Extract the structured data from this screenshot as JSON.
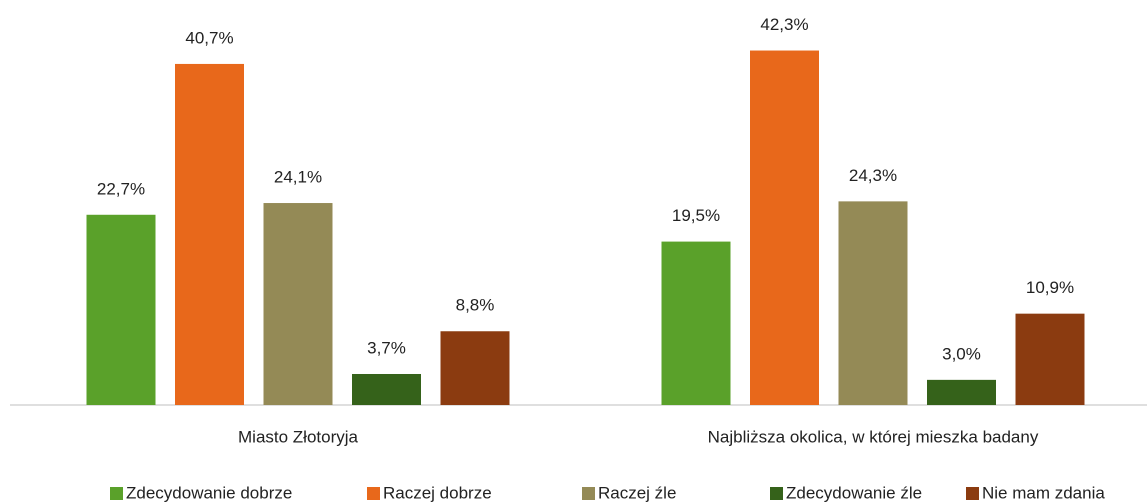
{
  "chart_data": {
    "type": "bar",
    "categories": [
      "Miasto Złotoryja",
      "Najbliższa okolica, w której mieszka badany"
    ],
    "series": [
      {
        "name": "Zdecydowanie dobrze",
        "color": "#5aa12a",
        "values": [
          22.7,
          19.5
        ],
        "value_labels": [
          "22,7%",
          "19,5%"
        ]
      },
      {
        "name": "Raczej dobrze",
        "color": "#e8681b",
        "values": [
          40.7,
          42.3
        ],
        "value_labels": [
          "40,7%",
          "42,3%"
        ]
      },
      {
        "name": "Raczej źle",
        "color": "#948a56",
        "values": [
          24.1,
          24.3
        ],
        "value_labels": [
          "24,1%",
          "24,3%"
        ]
      },
      {
        "name": "Zdecydowanie źle",
        "color": "#35621a",
        "values": [
          3.7,
          3.0
        ],
        "value_labels": [
          "3,7%",
          "3,0%"
        ]
      },
      {
        "name": "Nie mam zdania",
        "color": "#8b3b10",
        "values": [
          8.8,
          10.9
        ],
        "value_labels": [
          "8,8%",
          "10,9%"
        ]
      }
    ]
  }
}
